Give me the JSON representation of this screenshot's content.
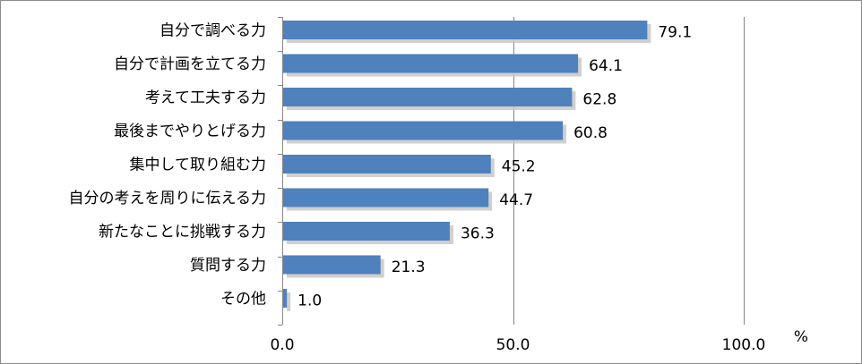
{
  "chart_data": {
    "type": "bar",
    "orientation": "horizontal",
    "categories": [
      "自分で調べる力",
      "自分で計画を立てる力",
      "考えて工夫する力",
      "最後までやりとげる力",
      "集中して取り組む力",
      "自分の考えを周りに伝える力",
      "新たなことに挑戦する力",
      "質問する力",
      "その他"
    ],
    "values": [
      79.1,
      64.1,
      62.8,
      60.8,
      45.2,
      44.7,
      36.3,
      21.3,
      1.0
    ],
    "value_labels": [
      "79.1",
      "64.1",
      "62.8",
      "60.8",
      "45.2",
      "44.7",
      "36.3",
      "21.3",
      "1.0"
    ],
    "xlim": [
      0,
      100
    ],
    "x_ticks": [
      0,
      50,
      100
    ],
    "x_tick_labels": [
      "0.0",
      "50.0",
      "100.0"
    ],
    "unit": "%",
    "grid": true,
    "bar_color": "#4F81BD",
    "shadow_color": "#C8C8C8"
  }
}
